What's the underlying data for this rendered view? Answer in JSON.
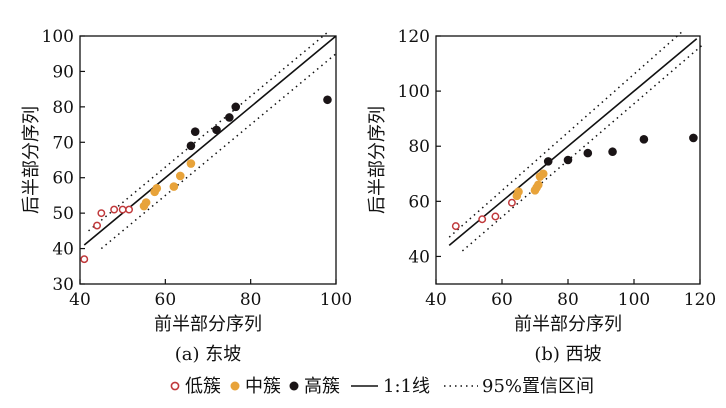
{
  "chart_data": [
    {
      "type": "scatter",
      "caption": "(a) 东坡",
      "xlabel": "前半部分序列",
      "ylabel": "后半部分序列",
      "xlim": [
        40,
        100
      ],
      "ylim": [
        30,
        100
      ],
      "xticks": [
        40,
        60,
        80,
        100
      ],
      "yticks": [
        30,
        40,
        50,
        60,
        70,
        80,
        90,
        100
      ],
      "grid": false,
      "reference_lines": [
        {
          "name": "1:1线",
          "style": "solid",
          "points": [
            [
              41,
              41
            ],
            [
              100,
              100
            ]
          ]
        },
        {
          "name": "95%置信区间",
          "style": "dotted",
          "points": [
            [
              42,
              45
            ],
            [
              98,
              101
            ]
          ]
        },
        {
          "name": "95%置信区间",
          "style": "dotted",
          "points": [
            [
              45,
              40
            ],
            [
              100,
              95
            ]
          ]
        }
      ],
      "series": [
        {
          "name": "低簇",
          "marker": "open-circle",
          "points": [
            [
              41,
              37
            ],
            [
              44,
              46.5
            ],
            [
              45,
              50
            ],
            [
              48,
              51
            ],
            [
              50,
              51
            ],
            [
              51.5,
              51
            ]
          ]
        },
        {
          "name": "中簇",
          "marker": "filled-circle",
          "points": [
            [
              55,
              52
            ],
            [
              55.5,
              53
            ],
            [
              57.5,
              56
            ],
            [
              58,
              57
            ],
            [
              62,
              57.5
            ],
            [
              63.5,
              60.5
            ],
            [
              66,
              64
            ]
          ]
        },
        {
          "name": "高簇",
          "marker": "filled-circle",
          "points": [
            [
              66,
              69
            ],
            [
              67,
              73
            ],
            [
              72,
              73.5
            ],
            [
              75,
              77
            ],
            [
              76.5,
              80
            ],
            [
              98,
              82
            ]
          ]
        }
      ]
    },
    {
      "type": "scatter",
      "caption": "(b) 西坡",
      "xlabel": "前半部分序列",
      "ylabel": "后半部分序列",
      "xlim": [
        40,
        120
      ],
      "ylim": [
        30,
        120
      ],
      "xticks": [
        40,
        60,
        80,
        100,
        120
      ],
      "yticks": [
        40,
        60,
        80,
        100,
        120
      ],
      "grid": false,
      "reference_lines": [
        {
          "name": "1:1线",
          "style": "solid",
          "points": [
            [
              44,
              44
            ],
            [
              119,
              119
            ]
          ]
        },
        {
          "name": "95%置信区间",
          "style": "dotted",
          "points": [
            [
              44,
              47
            ],
            [
              115,
              122
            ]
          ]
        },
        {
          "name": "95%置信区间",
          "style": "dotted",
          "points": [
            [
              48,
              42
            ],
            [
              121,
              117
            ]
          ]
        }
      ],
      "series": [
        {
          "name": "低簇",
          "marker": "open-circle",
          "points": [
            [
              46,
              51
            ],
            [
              54,
              53.5
            ],
            [
              58,
              54.5
            ],
            [
              63,
              59.5
            ]
          ]
        },
        {
          "name": "中簇",
          "marker": "filled-circle",
          "points": [
            [
              64.5,
              62
            ],
            [
              65,
              63.5
            ],
            [
              70,
              64
            ],
            [
              70.5,
              65
            ],
            [
              71,
              66
            ],
            [
              71.5,
              69
            ],
            [
              72.5,
              70
            ]
          ]
        },
        {
          "name": "高簇",
          "marker": "filled-circle",
          "points": [
            [
              74,
              74.5
            ],
            [
              80,
              75
            ],
            [
              86,
              77.5
            ],
            [
              93.5,
              78
            ],
            [
              103,
              82.5
            ],
            [
              118,
              83
            ]
          ]
        }
      ]
    }
  ],
  "legend": {
    "placement": "bottom",
    "items": [
      {
        "name": "低簇",
        "kind": "open-circle"
      },
      {
        "name": "中簇",
        "kind": "filled-circle"
      },
      {
        "name": "高簇",
        "kind": "filled-circle"
      },
      {
        "name": "1:1线",
        "kind": "solid-line"
      },
      {
        "name": "95%置信区间",
        "kind": "dotted-line"
      }
    ]
  },
  "colors": {
    "低簇": "#c0393b",
    "中簇": "#e8a33a",
    "高簇": "#1a1416",
    "lines": "#111111"
  }
}
